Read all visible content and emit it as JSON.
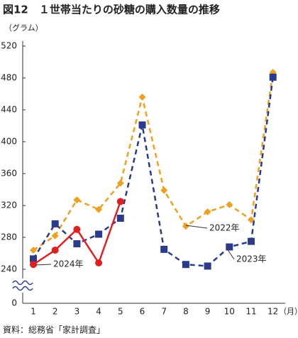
{
  "chart_data": {
    "type": "line",
    "title": "図12　１世帯当たりの砂糖の購入数量の推移",
    "y_axis_label": "（グラム）",
    "x_axis_label": "（月）",
    "source": "資料：総務省「家計調査」",
    "categories": [
      "1",
      "2",
      "3",
      "4",
      "5",
      "6",
      "7",
      "8",
      "9",
      "10",
      "11",
      "12"
    ],
    "ylim": [
      0,
      520
    ],
    "yticks": [
      0,
      240,
      280,
      320,
      360,
      400,
      440,
      480,
      520
    ],
    "axis_break": true,
    "series": [
      {
        "name": "2022年",
        "color": "#f0a020",
        "marker": "diamond",
        "dashed": true,
        "values": [
          264,
          282,
          327,
          315,
          348,
          456,
          339,
          294,
          312,
          321,
          302,
          487
        ]
      },
      {
        "name": "2023年",
        "color": "#2a3a8c",
        "marker": "square",
        "dashed": true,
        "values": [
          253,
          297,
          272,
          284,
          304,
          421,
          265,
          246,
          244,
          268,
          275,
          481
        ]
      },
      {
        "name": "2024年",
        "color": "#e02020",
        "marker": "circle",
        "dashed": false,
        "values": [
          246,
          264,
          290,
          248,
          325,
          null,
          null,
          null,
          null,
          null,
          null,
          null
        ]
      }
    ]
  }
}
